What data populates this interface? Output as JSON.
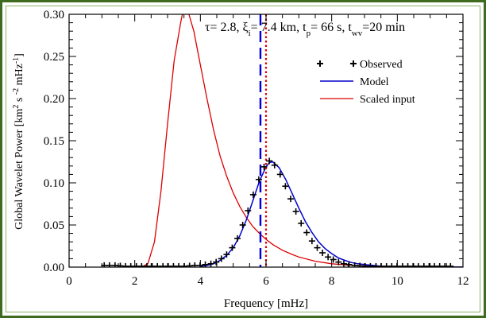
{
  "chart_data": {
    "type": "line",
    "title": "",
    "annotation": {
      "segments": [
        {
          "t": "τ= 2.8, ξ",
          "sub": false
        },
        {
          "t": "i",
          "sub": true
        },
        {
          "t": "= 7.4 km, t",
          "sub": false
        },
        {
          "t": "p",
          "sub": true
        },
        {
          "t": "= 66 s, t",
          "sub": false
        },
        {
          "t": "wv",
          "sub": true
        },
        {
          "t": "=20 min",
          "sub": false
        }
      ]
    },
    "xlabel": "Frequency [mHz]",
    "ylabel": {
      "main": "Global Wavelet Power [km",
      "sup1": "2",
      "mid1": "s",
      "sup2": "-2",
      "mid2": "mHz",
      "sup3": "-1",
      "end": "]"
    },
    "xlim": [
      0,
      12
    ],
    "ylim": [
      0,
      0.3
    ],
    "xticks": [
      "0",
      "2",
      "4",
      "6",
      "8",
      "10",
      "12"
    ],
    "yticks": [
      "0.00",
      "0.05",
      "0.10",
      "0.15",
      "0.20",
      "0.25",
      "0.30"
    ],
    "legend": {
      "position": "top-right",
      "entries": [
        "Observed",
        "Model",
        "Scaled input"
      ]
    },
    "colors": {
      "observed": "#000000",
      "model": "#0000cc",
      "scaled_input": "#dd0000",
      "blue_dashed_line": "#0000dd",
      "red_dotted_line": "#dd0000",
      "frame": "#3e6b1f"
    },
    "vertical_lines": [
      {
        "name": "blue-dashed",
        "x": 5.83
      },
      {
        "name": "red-dotted",
        "x": 6.0
      }
    ],
    "series": [
      {
        "name": "Observed",
        "style": "plus-markers",
        "x": [
          1.07,
          1.23,
          1.4,
          1.56,
          1.72,
          1.88,
          2.05,
          2.21,
          2.37,
          2.53,
          2.69,
          2.86,
          3.02,
          3.18,
          3.34,
          3.51,
          3.67,
          3.83,
          3.99,
          4.15,
          4.32,
          4.48,
          4.64,
          4.8,
          4.97,
          5.13,
          5.29,
          5.45,
          5.61,
          5.78,
          5.94,
          6.1,
          6.26,
          6.43,
          6.59,
          6.75,
          6.91,
          7.07,
          7.24,
          7.4,
          7.56,
          7.72,
          7.89,
          8.05,
          8.21,
          8.37,
          8.53,
          8.7,
          8.86,
          9.02,
          9.18,
          9.35,
          9.51,
          9.67,
          9.83,
          9.99,
          10.16,
          10.32,
          10.48,
          10.64,
          10.81,
          10.97,
          11.13,
          11.29,
          11.45,
          11.62
        ],
        "y": [
          0.002,
          0.002,
          0.002,
          0.0015,
          0.001,
          0.001,
          0.001,
          0.001,
          0.001,
          0.001,
          0.001,
          0.001,
          0.001,
          0.001,
          0.001,
          0.001,
          0.0015,
          0.002,
          0.002,
          0.003,
          0.004,
          0.006,
          0.01,
          0.015,
          0.023,
          0.034,
          0.05,
          0.067,
          0.086,
          0.104,
          0.119,
          0.126,
          0.121,
          0.11,
          0.096,
          0.081,
          0.066,
          0.052,
          0.041,
          0.031,
          0.023,
          0.017,
          0.012,
          0.009,
          0.006,
          0.004,
          0.003,
          0.002,
          0.0015,
          0.001,
          0.001,
          0.001,
          0.001,
          0.001,
          0.001,
          0.001,
          0.001,
          0.001,
          0.001,
          0.001,
          0.001,
          0.001,
          0.001,
          0.001,
          0.001,
          0.001
        ]
      },
      {
        "name": "Model",
        "style": "solid",
        "x": [
          4.0,
          4.2,
          4.4,
          4.6,
          4.8,
          5.0,
          5.2,
          5.4,
          5.6,
          5.8,
          6.0,
          6.1,
          6.2,
          6.4,
          6.6,
          6.8,
          7.0,
          7.2,
          7.4,
          7.6,
          7.8,
          8.0,
          8.2,
          8.4,
          8.6,
          8.8,
          9.0,
          9.5,
          10.0,
          10.5,
          11.0,
          11.5,
          12.0
        ],
        "y": [
          0.001,
          0.002,
          0.004,
          0.008,
          0.014,
          0.023,
          0.037,
          0.056,
          0.079,
          0.102,
          0.119,
          0.124,
          0.125,
          0.118,
          0.104,
          0.087,
          0.07,
          0.054,
          0.041,
          0.03,
          0.022,
          0.016,
          0.011,
          0.008,
          0.0055,
          0.004,
          0.003,
          0.001,
          0.0005,
          0.0003,
          0.0002,
          0.0001,
          0.0001
        ]
      },
      {
        "name": "Scaled input",
        "style": "solid",
        "x": [
          2.2,
          2.4,
          2.6,
          2.8,
          3.0,
          3.2,
          3.4,
          3.45,
          3.55,
          3.65,
          3.8,
          4.0,
          4.2,
          4.4,
          4.6,
          4.8,
          5.0,
          5.2,
          5.4,
          5.6,
          5.8,
          6.0,
          6.2,
          6.5,
          6.8,
          7.0,
          7.5,
          8.0,
          8.5,
          9.0,
          10.0,
          11.0,
          12.0
        ],
        "y": [
          0.0,
          0.004,
          0.03,
          0.09,
          0.17,
          0.245,
          0.29,
          0.3,
          0.305,
          0.3,
          0.28,
          0.24,
          0.2,
          0.163,
          0.132,
          0.108,
          0.088,
          0.072,
          0.059,
          0.048,
          0.04,
          0.033,
          0.027,
          0.02,
          0.015,
          0.012,
          0.007,
          0.004,
          0.0025,
          0.0015,
          0.0006,
          0.0002,
          0.0001
        ]
      }
    ]
  }
}
